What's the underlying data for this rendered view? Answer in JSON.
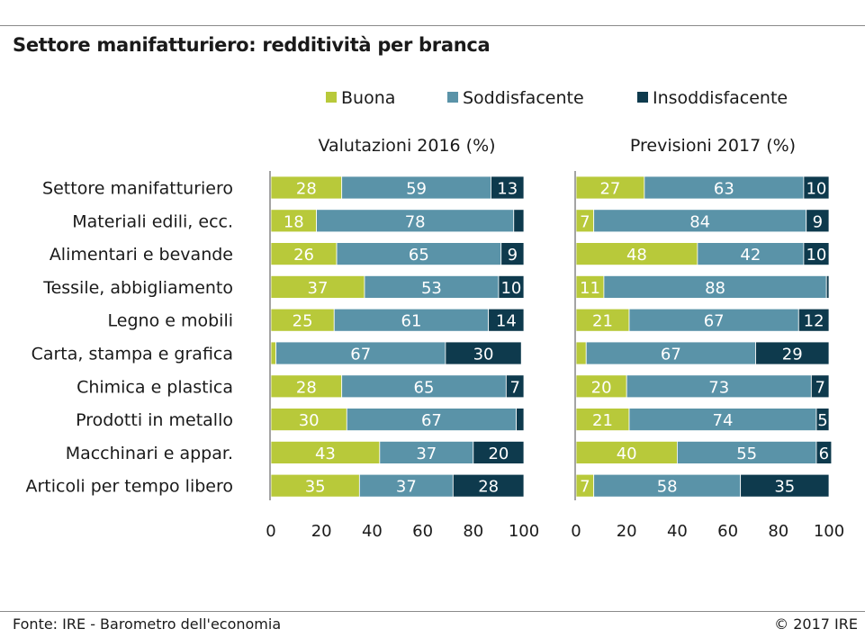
{
  "title": "Settore manifatturiero: redditività per branca",
  "footer": {
    "source": "Fonte: IRE - Barometro dell'economia",
    "copyright": "© 2017 IRE"
  },
  "colors": {
    "buona": "#b8c93a",
    "soddisfacente": "#5a93a8",
    "insoddisfacente": "#0e3a4d"
  },
  "chart_data": {
    "type": "bar",
    "orientation": "horizontal",
    "stacked": true,
    "categories": [
      "Settore manifatturiero",
      "Materiali edili, ecc.",
      "Alimentari e bevande",
      "Tessile, abbigliamento",
      "Legno e mobili",
      "Carta, stampa e grafica",
      "Chimica e plastica",
      "Prodotti in metallo",
      "Macchinari e appar.",
      "Articoli per tempo libero"
    ],
    "legend": [
      "Buona",
      "Soddisfacente",
      "Insoddisfacente"
    ],
    "legend_position": "top",
    "xlim": [
      0,
      100
    ],
    "xticks": [
      "0",
      "20",
      "40",
      "60",
      "80",
      "100"
    ],
    "panels": [
      {
        "title": "Valutazioni 2016 (%)",
        "series": [
          {
            "name": "Buona",
            "values": [
              28,
              18,
              26,
              37,
              25,
              2,
              28,
              30,
              43,
              35
            ]
          },
          {
            "name": "Soddisfacente",
            "values": [
              59,
              78,
              65,
              53,
              61,
              67,
              65,
              67,
              37,
              37
            ]
          },
          {
            "name": "Insoddisfacente",
            "values": [
              13,
              4,
              9,
              10,
              14,
              30,
              7,
              3,
              20,
              28
            ]
          }
        ],
        "labels": [
          [
            "28",
            "59",
            "13"
          ],
          [
            "18",
            "78",
            ""
          ],
          [
            "26",
            "65",
            "9"
          ],
          [
            "37",
            "53",
            "10"
          ],
          [
            "25",
            "61",
            "14"
          ],
          [
            "",
            "67",
            "30"
          ],
          [
            "28",
            "65",
            "7"
          ],
          [
            "30",
            "67",
            ""
          ],
          [
            "43",
            "37",
            "20"
          ],
          [
            "35",
            "37",
            "28"
          ]
        ]
      },
      {
        "title": "Previsioni 2017 (%)",
        "series": [
          {
            "name": "Buona",
            "values": [
              27,
              7,
              48,
              11,
              21,
              4,
              20,
              21,
              40,
              7
            ]
          },
          {
            "name": "Soddisfacente",
            "values": [
              63,
              84,
              42,
              88,
              67,
              67,
              73,
              74,
              55,
              58
            ]
          },
          {
            "name": "Insoddisfacente",
            "values": [
              10,
              9,
              10,
              1,
              12,
              29,
              7,
              5,
              6,
              35
            ]
          }
        ],
        "labels": [
          [
            "27",
            "63",
            "10"
          ],
          [
            "7",
            "84",
            "9"
          ],
          [
            "48",
            "42",
            "10"
          ],
          [
            "11",
            "88",
            ""
          ],
          [
            "21",
            "67",
            "12"
          ],
          [
            "",
            "67",
            "29"
          ],
          [
            "20",
            "73",
            "7"
          ],
          [
            "21",
            "74",
            "5"
          ],
          [
            "40",
            "55",
            "6"
          ],
          [
            "7",
            "58",
            "35"
          ]
        ]
      }
    ]
  }
}
